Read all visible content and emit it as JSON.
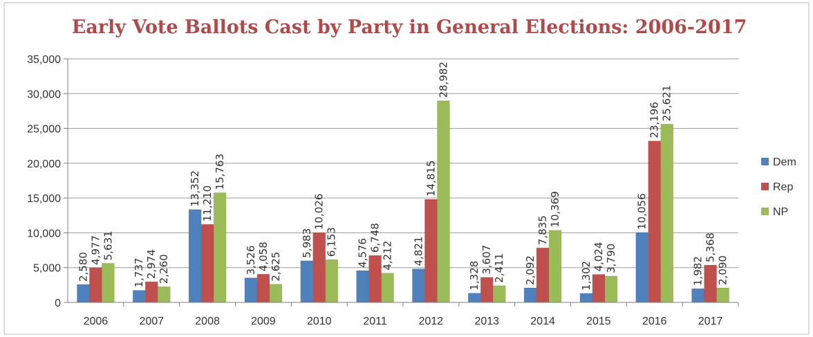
{
  "colors": {
    "Dem": "#4f81bd",
    "Rep": "#c0504d",
    "NP": "#9bbb59"
  },
  "chart_data": {
    "type": "bar",
    "title": "Early Vote Ballots Cast by Party in General Elections:  2006-2017",
    "categories": [
      "2006",
      "2007",
      "2008",
      "2009",
      "2010",
      "2011",
      "2012",
      "2013",
      "2014",
      "2015",
      "2016",
      "2017"
    ],
    "series": [
      {
        "name": "Dem",
        "values": [
          2580,
          1737,
          13352,
          3526,
          5983,
          4576,
          4821,
          1328,
          2092,
          1302,
          10056,
          1982
        ]
      },
      {
        "name": "Rep",
        "values": [
          4977,
          2974,
          11210,
          4058,
          10026,
          6748,
          14815,
          3607,
          7835,
          4024,
          23196,
          5368
        ]
      },
      {
        "name": "NP",
        "values": [
          5631,
          2260,
          15763,
          2625,
          6153,
          4212,
          28982,
          2411,
          10369,
          3790,
          25621,
          2090
        ]
      }
    ],
    "data_labels": {
      "Dem": [
        "2,580",
        "1,737",
        "13,352",
        "3,526",
        "5,983",
        "4,576",
        "4,821",
        "1,328",
        "2,092",
        "1,302",
        "10,056",
        "1,982"
      ],
      "Rep": [
        "4,977",
        "2,974",
        "11,210",
        "4,058",
        "10,026",
        "6,748",
        "14,815",
        "3,607",
        "7,835",
        "4,024",
        "23,196",
        "5,368"
      ],
      "NP": [
        "5,631",
        "2,260",
        "15,763",
        "2,625",
        "6,153",
        "4,212",
        "28,982",
        "2,411",
        "10,369",
        "3,790",
        "25,621",
        "2,090"
      ]
    },
    "yticks": [
      "0",
      "5,000",
      "10,000",
      "15,000",
      "20,000",
      "25,000",
      "30,000",
      "35,000"
    ],
    "ylim": [
      0,
      35000
    ],
    "grid": true,
    "legend": "right"
  }
}
